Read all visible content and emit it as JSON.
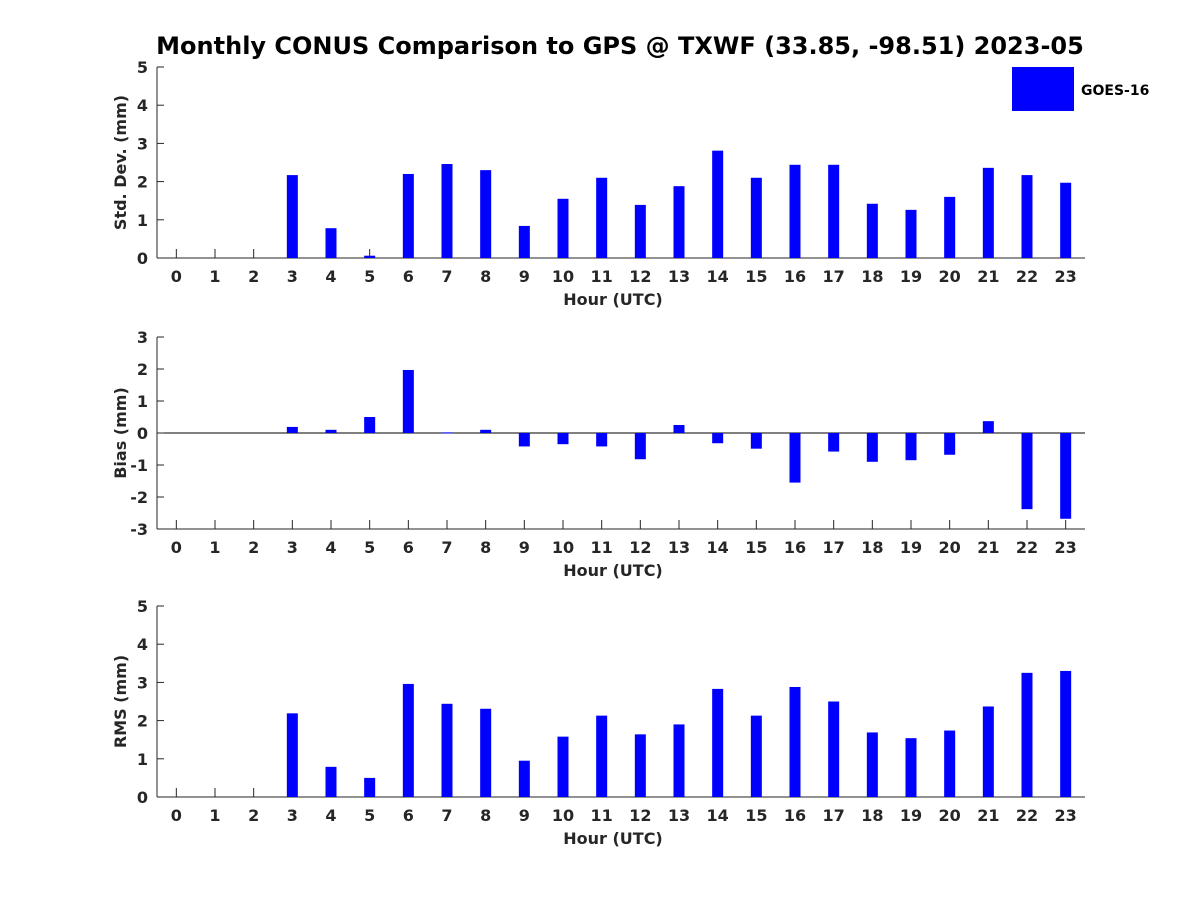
{
  "title": "Monthly CONUS Comparison to GPS @ TXWF (33.85, -98.51) 2023-05",
  "legend": {
    "label": "GOES-16",
    "placement": "top-right"
  },
  "colors": {
    "bar": "#0000ff",
    "axis": "#262626",
    "background": "#ffffff"
  },
  "chart_data": [
    {
      "type": "bar",
      "xlabel": "Hour (UTC)",
      "ylabel": "Std. Dev. (mm)",
      "ylim": [
        0,
        5
      ],
      "yticks": [
        0,
        1,
        2,
        3,
        4,
        5
      ],
      "categories": [
        "0",
        "1",
        "2",
        "3",
        "4",
        "5",
        "6",
        "7",
        "8",
        "9",
        "10",
        "11",
        "12",
        "13",
        "14",
        "15",
        "16",
        "17",
        "18",
        "19",
        "20",
        "21",
        "22",
        "23"
      ],
      "series": [
        {
          "name": "GOES-16",
          "values": [
            null,
            null,
            null,
            2.17,
            0.78,
            0.06,
            2.2,
            2.46,
            2.3,
            0.84,
            1.55,
            2.1,
            1.39,
            1.88,
            2.81,
            2.1,
            2.44,
            2.44,
            1.42,
            1.26,
            1.6,
            2.36,
            2.17,
            1.97
          ]
        }
      ],
      "grid": false
    },
    {
      "type": "bar",
      "xlabel": "Hour (UTC)",
      "ylabel": "Bias (mm)",
      "ylim": [
        -3,
        3
      ],
      "yticks": [
        -3,
        -2,
        -1,
        0,
        1,
        2,
        3
      ],
      "categories": [
        "0",
        "1",
        "2",
        "3",
        "4",
        "5",
        "6",
        "7",
        "8",
        "9",
        "10",
        "11",
        "12",
        "13",
        "14",
        "15",
        "16",
        "17",
        "18",
        "19",
        "20",
        "21",
        "22",
        "23"
      ],
      "series": [
        {
          "name": "GOES-16",
          "values": [
            null,
            null,
            null,
            0.19,
            0.1,
            0.5,
            1.97,
            0.02,
            0.1,
            -0.42,
            -0.35,
            -0.42,
            -0.82,
            0.25,
            -0.32,
            -0.49,
            -1.55,
            -0.58,
            -0.9,
            -0.85,
            -0.68,
            0.37,
            -2.38,
            -2.68
          ]
        }
      ],
      "grid": false
    },
    {
      "type": "bar",
      "xlabel": "Hour (UTC)",
      "ylabel": "RMS (mm)",
      "ylim": [
        0,
        5
      ],
      "yticks": [
        0,
        1,
        2,
        3,
        4,
        5
      ],
      "categories": [
        "0",
        "1",
        "2",
        "3",
        "4",
        "5",
        "6",
        "7",
        "8",
        "9",
        "10",
        "11",
        "12",
        "13",
        "14",
        "15",
        "16",
        "17",
        "18",
        "19",
        "20",
        "21",
        "22",
        "23"
      ],
      "series": [
        {
          "name": "GOES-16",
          "values": [
            null,
            null,
            null,
            2.19,
            0.79,
            0.5,
            2.96,
            2.44,
            2.31,
            0.95,
            1.58,
            2.13,
            1.64,
            1.9,
            2.83,
            2.13,
            2.88,
            2.5,
            1.69,
            1.54,
            1.74,
            2.37,
            3.25,
            3.3
          ]
        }
      ],
      "grid": false
    }
  ]
}
